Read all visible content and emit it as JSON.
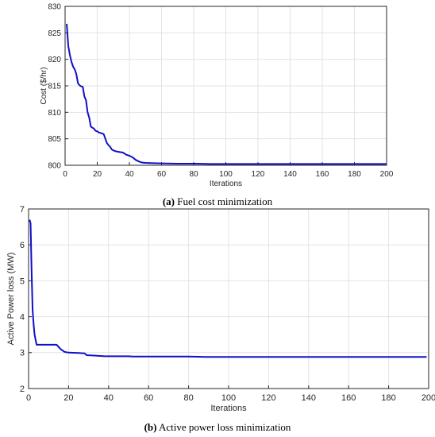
{
  "chart_data": [
    {
      "type": "line",
      "title": "",
      "xlabel": "Iterations",
      "ylabel": "Cost ($/hr)",
      "xlim": [
        0,
        200
      ],
      "ylim": [
        800,
        830
      ],
      "xticks": [
        "0",
        "20",
        "40",
        "60",
        "80",
        "100",
        "120",
        "140",
        "160",
        "180",
        "200"
      ],
      "yticks": [
        "800",
        "805",
        "810",
        "815",
        "820",
        "825",
        "830"
      ],
      "grid": true,
      "series": [
        {
          "name": "",
          "color": "#1010c8",
          "x": [
            1,
            2,
            3,
            4,
            5,
            6,
            7,
            8,
            9,
            10,
            11,
            12,
            13,
            14,
            15,
            16,
            17,
            18,
            19,
            20,
            21,
            22,
            24,
            26,
            27,
            28,
            29,
            30,
            32,
            34,
            36,
            38,
            40,
            42,
            44,
            46,
            48,
            50,
            55,
            60,
            70,
            80,
            90,
            100,
            120,
            140,
            160,
            180,
            200
          ],
          "y": [
            826.7,
            822.5,
            820.8,
            819.5,
            818.6,
            818.1,
            817.2,
            815.5,
            815.1,
            814.9,
            814.8,
            813.0,
            812.3,
            810.0,
            809.0,
            807.3,
            807.1,
            806.9,
            806.5,
            806.4,
            806.2,
            806.1,
            805.9,
            804.2,
            803.8,
            803.5,
            803.0,
            802.8,
            802.6,
            802.5,
            802.4,
            802.0,
            801.8,
            801.5,
            801.0,
            800.7,
            800.5,
            800.45,
            800.4,
            800.35,
            800.3,
            800.3,
            800.25,
            800.25,
            800.25,
            800.25,
            800.25,
            800.25,
            800.25
          ]
        }
      ],
      "caption_label": "(a)",
      "caption_text": " Fuel cost minimization"
    },
    {
      "type": "line",
      "title": "",
      "xlabel": "Iterations",
      "ylabel": "Active Power loss (MW)",
      "xlim": [
        0,
        200
      ],
      "ylim": [
        2,
        7
      ],
      "xticks": [
        "0",
        "20",
        "40",
        "60",
        "80",
        "100",
        "120",
        "140",
        "160",
        "180",
        "200"
      ],
      "yticks": [
        "2",
        "3",
        "4",
        "5",
        "6",
        "7"
      ],
      "grid": true,
      "series": [
        {
          "name": "",
          "color": "#1010c8",
          "x": [
            0.5,
            1,
            1.5,
            2,
            2.5,
            3,
            4,
            5,
            6,
            8,
            10,
            12,
            14,
            16,
            18,
            20,
            25,
            28,
            29,
            32,
            35,
            38,
            40,
            45,
            50,
            52,
            60,
            80,
            88,
            100,
            120,
            140,
            160,
            180,
            199
          ],
          "y": [
            6.7,
            6.6,
            5.3,
            4.2,
            3.8,
            3.5,
            3.22,
            3.22,
            3.22,
            3.22,
            3.22,
            3.22,
            3.22,
            3.1,
            3.02,
            3.0,
            2.99,
            2.98,
            2.93,
            2.92,
            2.91,
            2.9,
            2.9,
            2.9,
            2.9,
            2.89,
            2.89,
            2.89,
            2.88,
            2.88,
            2.88,
            2.88,
            2.88,
            2.88,
            2.88
          ]
        }
      ],
      "caption_label": "(b)",
      "caption_text": " Active power loss minimization"
    }
  ]
}
